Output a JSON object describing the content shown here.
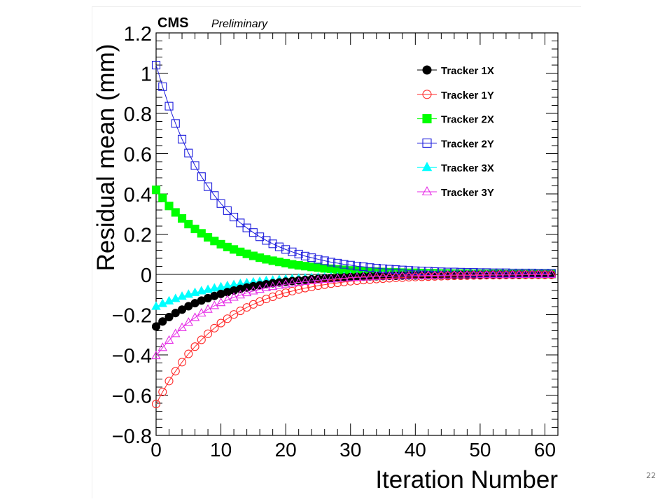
{
  "slide": {
    "page_number": "22"
  },
  "colors": {
    "Tracker 1X": "#000000",
    "Tracker 1Y": "#ff2a2a",
    "Tracker 2X": "#00ff00",
    "Tracker 2Y": "#1c1cdc",
    "Tracker 3X": "#00ffff",
    "Tracker 3Y": "#e62be6"
  },
  "chart_data": {
    "type": "scatter",
    "title": "",
    "experiment": "CMS",
    "status": "Preliminary",
    "xlabel": "Iteration Number",
    "ylabel": "Residual mean (mm)",
    "xlim": [
      0,
      62
    ],
    "ylim": [
      -0.8,
      1.2
    ],
    "x_ticks": [
      0,
      10,
      20,
      30,
      40,
      50,
      60
    ],
    "y_ticks": [
      {
        "value": -0.8,
        "label": "−0.8"
      },
      {
        "value": -0.6,
        "label": "−0.6"
      },
      {
        "value": -0.4,
        "label": "−0.4"
      },
      {
        "value": -0.2,
        "label": "−0.2"
      },
      {
        "value": 0,
        "label": "0"
      },
      {
        "value": 0.2,
        "label": "0.2"
      },
      {
        "value": 0.4,
        "label": "0.4"
      },
      {
        "value": 0.6,
        "label": "0.6"
      },
      {
        "value": 0.8,
        "label": "0.8"
      },
      {
        "value": 1,
        "label": "1"
      },
      {
        "value": 1.2,
        "label": "1.2"
      }
    ],
    "legend_position": "top-right",
    "grid": false,
    "x": [
      0,
      1,
      2,
      3,
      4,
      5,
      6,
      7,
      8,
      9,
      10,
      11,
      12,
      13,
      14,
      15,
      16,
      17,
      18,
      19,
      20,
      21,
      22,
      23,
      24,
      25,
      26,
      27,
      28,
      29,
      30,
      31,
      32,
      33,
      34,
      35,
      36,
      37,
      38,
      39,
      40,
      41,
      42,
      43,
      44,
      45,
      46,
      47,
      48,
      49,
      50,
      51,
      52,
      53,
      54,
      55,
      56,
      57,
      58,
      59,
      60,
      61
    ],
    "series": [
      {
        "name": "Tracker 1X",
        "marker": "circle-filled",
        "values": [
          -0.259,
          -0.234,
          -0.212,
          -0.192,
          -0.175,
          -0.158,
          -0.143,
          -0.13,
          -0.118,
          -0.107,
          -0.097,
          -0.088,
          -0.08,
          -0.072,
          -0.065,
          -0.059,
          -0.054,
          -0.049,
          -0.044,
          -0.04,
          -0.036,
          -0.033,
          -0.03,
          -0.027,
          -0.024,
          -0.022,
          -0.02,
          -0.018,
          -0.016,
          -0.015,
          -0.013,
          -0.012,
          -0.011,
          -0.01,
          -0.009,
          -0.008,
          -0.007,
          -0.007,
          -0.006,
          -0.005,
          -0.005,
          -0.004,
          -0.004,
          -0.004,
          -0.003,
          -0.003,
          -0.003,
          -0.002,
          -0.002,
          -0.002,
          -0.002,
          -0.002,
          -0.001,
          -0.001,
          -0.001,
          -0.001,
          -0.001,
          -0.001,
          -0.001,
          -0.001,
          -0.001,
          -0.001
        ]
      },
      {
        "name": "Tracker 1Y",
        "marker": "circle-open",
        "values": [
          -0.644,
          -0.584,
          -0.53,
          -0.481,
          -0.436,
          -0.395,
          -0.359,
          -0.325,
          -0.295,
          -0.267,
          -0.242,
          -0.22,
          -0.199,
          -0.181,
          -0.164,
          -0.149,
          -0.135,
          -0.122,
          -0.111,
          -0.1,
          -0.091,
          -0.083,
          -0.075,
          -0.068,
          -0.062,
          -0.056,
          -0.051,
          -0.046,
          -0.042,
          -0.038,
          -0.034,
          -0.031,
          -0.028,
          -0.026,
          -0.023,
          -0.021,
          -0.019,
          -0.017,
          -0.016,
          -0.014,
          -0.013,
          -0.012,
          -0.011,
          -0.01,
          -0.009,
          -0.008,
          -0.007,
          -0.007,
          -0.006,
          -0.005,
          -0.005,
          -0.004,
          -0.004,
          -0.004,
          -0.003,
          -0.003,
          -0.003,
          -0.002,
          -0.002,
          -0.002,
          -0.002,
          -0.002
        ]
      },
      {
        "name": "Tracker 2X",
        "marker": "square-filled",
        "values": [
          0.42,
          0.38,
          0.34,
          0.308,
          0.278,
          0.25,
          0.226,
          0.204,
          0.184,
          0.166,
          0.15,
          0.136,
          0.124,
          0.112,
          0.102,
          0.092,
          0.083,
          0.075,
          0.068,
          0.062,
          0.056,
          0.05,
          0.045,
          0.041,
          0.037,
          0.034,
          0.03,
          0.028,
          0.025,
          0.023,
          0.02,
          0.019,
          0.017,
          0.015,
          0.014,
          0.012,
          0.011,
          0.01,
          0.009,
          0.008,
          0.008,
          0.007,
          0.006,
          0.006,
          0.005,
          0.005,
          0.004,
          0.004,
          0.004,
          0.003,
          0.003,
          0.003,
          0.003,
          0.003,
          0.002,
          0.002,
          0.002,
          0.002,
          0.002,
          0.002,
          0.002,
          0.002
        ]
      },
      {
        "name": "Tracker 2Y",
        "marker": "square-open",
        "values": [
          1.04,
          0.933,
          0.836,
          0.75,
          0.672,
          0.603,
          0.541,
          0.486,
          0.436,
          0.392,
          0.352,
          0.317,
          0.285,
          0.256,
          0.231,
          0.208,
          0.187,
          0.169,
          0.152,
          0.137,
          0.124,
          0.112,
          0.101,
          0.091,
          0.083,
          0.075,
          0.068,
          0.061,
          0.056,
          0.05,
          0.046,
          0.041,
          0.038,
          0.034,
          0.031,
          0.028,
          0.026,
          0.024,
          0.022,
          0.02,
          0.018,
          0.017,
          0.016,
          0.014,
          0.013,
          0.012,
          0.012,
          0.011,
          0.01,
          0.01,
          0.009,
          0.009,
          0.008,
          0.008,
          0.008,
          0.007,
          0.007,
          0.007,
          0.007,
          0.006,
          0.006,
          0.006
        ]
      },
      {
        "name": "Tracker 3X",
        "marker": "triangle-filled",
        "values": [
          -0.16,
          -0.146,
          -0.133,
          -0.121,
          -0.11,
          -0.1,
          -0.091,
          -0.083,
          -0.076,
          -0.069,
          -0.063,
          -0.057,
          -0.052,
          -0.047,
          -0.043,
          -0.039,
          -0.036,
          -0.032,
          -0.03,
          -0.027,
          -0.024,
          -0.022,
          -0.02,
          -0.019,
          -0.017,
          -0.015,
          -0.014,
          -0.013,
          -0.012,
          -0.011,
          -0.01,
          -0.009,
          -0.008,
          -0.007,
          -0.007,
          -0.006,
          -0.006,
          -0.005,
          -0.005,
          -0.004,
          -0.004,
          -0.004,
          -0.003,
          -0.003,
          -0.003,
          -0.003,
          -0.002,
          -0.002,
          -0.002,
          -0.002,
          -0.002,
          -0.002,
          -0.001,
          -0.001,
          -0.001,
          -0.001,
          -0.001,
          -0.001,
          -0.001,
          -0.001,
          -0.001,
          -0.001
        ]
      },
      {
        "name": "Tracker 3Y",
        "marker": "triangle-open",
        "values": [
          -0.405,
          -0.364,
          -0.328,
          -0.295,
          -0.265,
          -0.239,
          -0.215,
          -0.193,
          -0.174,
          -0.156,
          -0.141,
          -0.127,
          -0.114,
          -0.103,
          -0.092,
          -0.083,
          -0.075,
          -0.067,
          -0.061,
          -0.055,
          -0.049,
          -0.044,
          -0.04,
          -0.036,
          -0.032,
          -0.029,
          -0.026,
          -0.024,
          -0.021,
          -0.019,
          -0.017,
          -0.015,
          -0.014,
          -0.013,
          -0.011,
          -0.01,
          -0.009,
          -0.008,
          -0.008,
          -0.007,
          -0.006,
          -0.006,
          -0.005,
          -0.005,
          -0.004,
          -0.004,
          -0.003,
          -0.003,
          -0.003,
          -0.003,
          -0.002,
          -0.002,
          -0.002,
          -0.002,
          -0.002,
          -0.002,
          -0.001,
          -0.001,
          -0.001,
          -0.001,
          -0.001,
          -0.001
        ]
      }
    ]
  }
}
